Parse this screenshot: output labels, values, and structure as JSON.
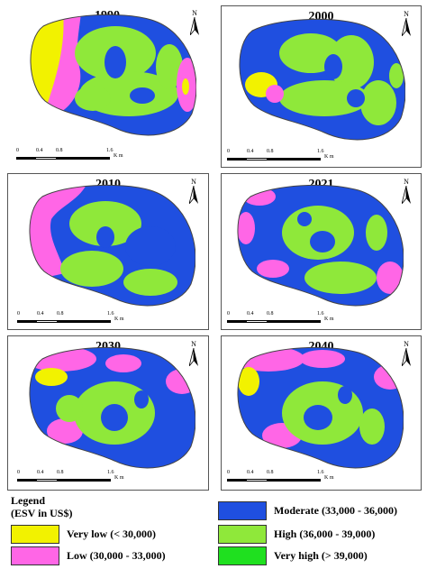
{
  "colors": {
    "very_low": "#f2f200",
    "low": "#ff66e6",
    "moderate": "#1f4fe0",
    "high": "#8fe83a",
    "very_high": "#1fe01f"
  },
  "panels": [
    {
      "year": "1990",
      "north": "N",
      "scale": {
        "ticks": [
          "0",
          "0.4",
          "0.8",
          "1.6"
        ],
        "unit": "K m"
      }
    },
    {
      "year": "2000",
      "north": "N",
      "scale": {
        "ticks": [
          "0",
          "0.4",
          "0.8",
          "1.6"
        ],
        "unit": "K m"
      }
    },
    {
      "year": "2010",
      "north": "N",
      "scale": {
        "ticks": [
          "0",
          "0.4",
          "0.8",
          "1.6"
        ],
        "unit": "K m"
      }
    },
    {
      "year": "2021",
      "north": "N",
      "scale": {
        "ticks": [
          "0",
          "0.4",
          "0.8",
          "1.6"
        ],
        "unit": "K m"
      }
    },
    {
      "year": "2030",
      "north": "N",
      "scale": {
        "ticks": [
          "0",
          "0.4",
          "0.8",
          "1.6"
        ],
        "unit": "K m"
      }
    },
    {
      "year": "2040",
      "north": "N",
      "scale": {
        "ticks": [
          "0",
          "0.4",
          "0.8",
          "1.6"
        ],
        "unit": "K m"
      }
    }
  ],
  "legend": {
    "title_line1": "Legend",
    "title_line2": "(ESV in US$)",
    "items": [
      {
        "key": "very_low",
        "label": "Very low (< 30,000)"
      },
      {
        "key": "low",
        "label": "Low (30,000 - 33,000)"
      },
      {
        "key": "moderate",
        "label": "Moderate (33,000 - 36,000)"
      },
      {
        "key": "high",
        "label": "High (36,000 - 39,000)"
      },
      {
        "key": "very_high",
        "label": "Very high (> 39,000)"
      }
    ]
  }
}
